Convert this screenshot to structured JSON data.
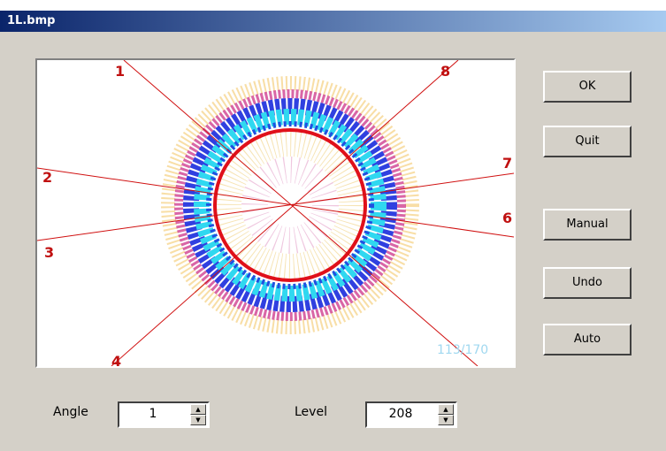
{
  "window": {
    "title": "1L.bmp"
  },
  "image": {
    "labels": [
      "1",
      "2",
      "3",
      "4",
      "6",
      "7",
      "8"
    ],
    "counter": "113/170"
  },
  "buttons": [
    "OK",
    "Quit",
    "Manual",
    "Undo",
    "Auto"
  ],
  "controls": [
    {
      "label": "Angle",
      "value": "1"
    },
    {
      "label": "Level",
      "value": "208"
    }
  ]
}
